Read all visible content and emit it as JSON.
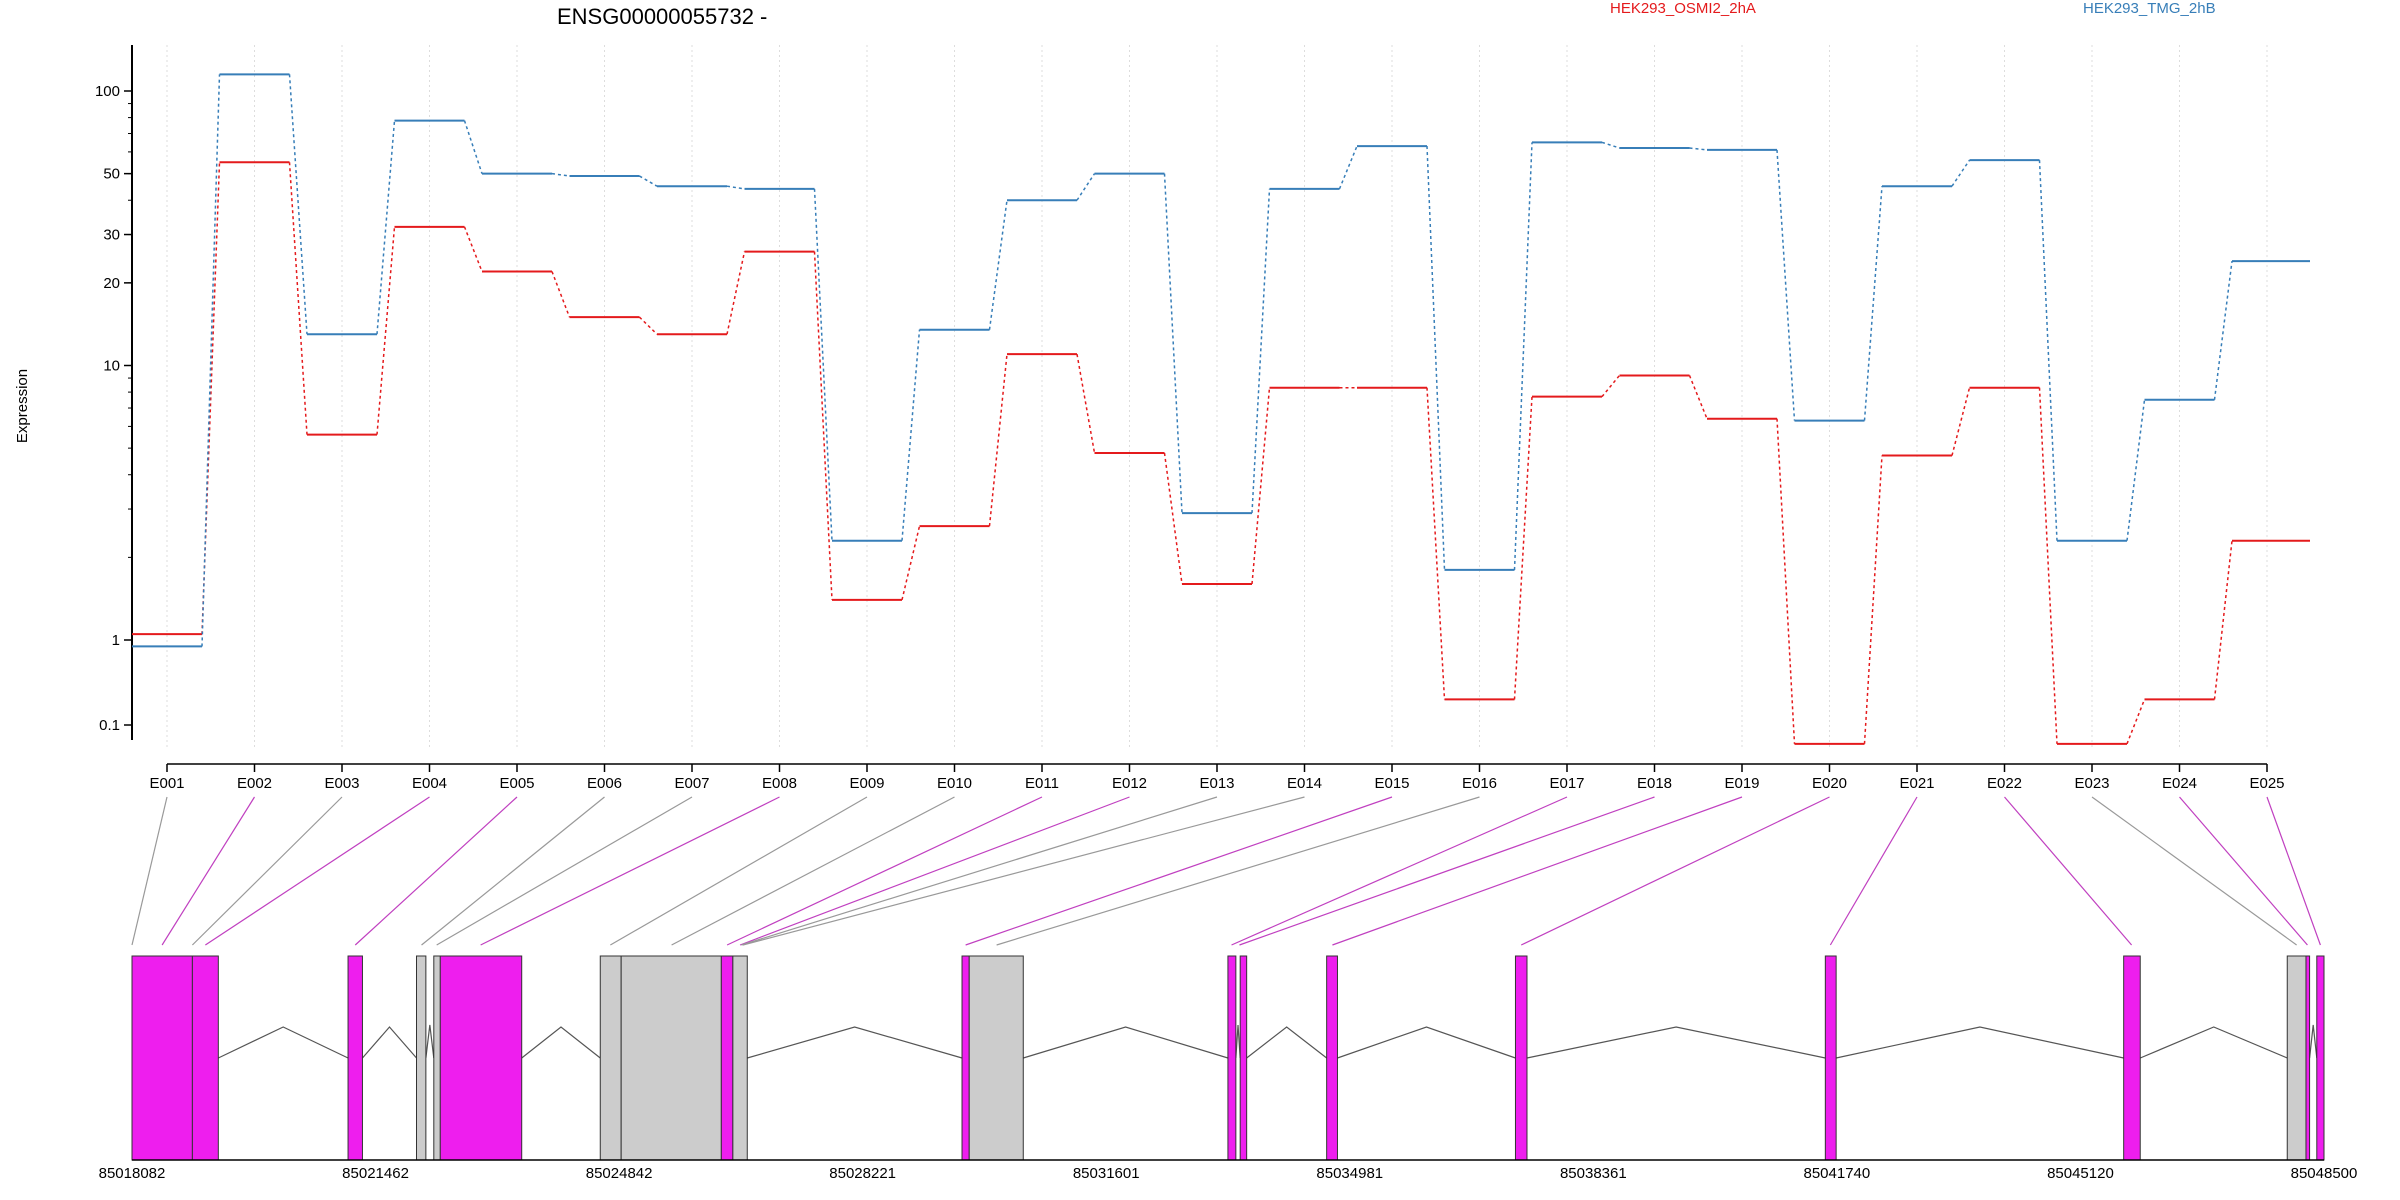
{
  "chart_data": {
    "type": "line",
    "title": "ENSG00000055732 -",
    "xlabel": "",
    "ylabel": "Expression",
    "y_scale": "log",
    "y_ticks": [
      0.1,
      1,
      10,
      20,
      30,
      50,
      100
    ],
    "y_tick_labels": [
      "0.1",
      "1",
      "10",
      "20",
      "30",
      "50",
      "100"
    ],
    "grid": "vertical dotted lines at exon positions",
    "legend_position": "top",
    "categories": [
      "E001",
      "E002",
      "E003",
      "E004",
      "E005",
      "E006",
      "E007",
      "E008",
      "E009",
      "E010",
      "E011",
      "E012",
      "E013",
      "E014",
      "E015",
      "E016",
      "E017",
      "E018",
      "E019",
      "E020",
      "E021",
      "E022",
      "E023",
      "E024",
      "E025"
    ],
    "series": [
      {
        "name": "HEK293_OSMI2_2hA",
        "color": "#e41a1c",
        "values": [
          1.05,
          55,
          5.6,
          32,
          22,
          15,
          13,
          26,
          1.4,
          2.6,
          11,
          4.8,
          1.6,
          8.3,
          8.3,
          0.2,
          7.7,
          9.2,
          6.4,
          0.06,
          4.7,
          8.3,
          0.06,
          0.2,
          2.3
        ]
      },
      {
        "name": "HEK293_TMG_2hB",
        "color": "#377eb8",
        "values": [
          0.84,
          115,
          13,
          78,
          50,
          49,
          45,
          44,
          2.3,
          13.5,
          40,
          50,
          2.9,
          44,
          63,
          1.8,
          65,
          62,
          61,
          6.3,
          45,
          56,
          2.3,
          7.5,
          24
        ]
      }
    ],
    "gene_model": {
      "coordinate_labels": [
        "85018082",
        "85021462",
        "85024842",
        "85028221",
        "85031601",
        "85034981",
        "85038361",
        "85041740",
        "85045120",
        "85048500"
      ],
      "coord_start": 85018082,
      "coord_end": 85048500,
      "highlight_color": "#ee1eee",
      "other_color": "#cccccc",
      "exon_blocks": [
        {
          "exon": "E001",
          "start": 85018082,
          "end": 85018920,
          "kind": "highlight"
        },
        {
          "exon": "E002",
          "start": 85018920,
          "end": 85019280,
          "kind": "highlight"
        },
        {
          "exon": "E003",
          "start": 85021080,
          "end": 85021280,
          "kind": "highlight"
        },
        {
          "exon": "E004",
          "start": 85022030,
          "end": 85022160,
          "kind": "other"
        },
        {
          "exon": "E005",
          "start": 85022270,
          "end": 85022360,
          "kind": "other"
        },
        {
          "exon": "E006",
          "start": 85022360,
          "end": 85023490,
          "kind": "highlight"
        },
        {
          "exon": "E007",
          "start": 85024580,
          "end": 85024870,
          "kind": "other"
        },
        {
          "exon": "E008",
          "start": 85024870,
          "end": 85026260,
          "kind": "other"
        },
        {
          "exon": "E009",
          "start": 85026260,
          "end": 85026420,
          "kind": "highlight"
        },
        {
          "exon": "E010",
          "start": 85026420,
          "end": 85026620,
          "kind": "other"
        },
        {
          "exon": "E011",
          "start": 85029600,
          "end": 85029700,
          "kind": "highlight"
        },
        {
          "exon": "E012",
          "start": 85029700,
          "end": 85030450,
          "kind": "other"
        },
        {
          "exon": "E013",
          "start": 85033290,
          "end": 85033400,
          "kind": "highlight"
        },
        {
          "exon": "E014",
          "start": 85033460,
          "end": 85033550,
          "kind": "highlight"
        },
        {
          "exon": "E015",
          "start": 85034660,
          "end": 85034810,
          "kind": "highlight"
        },
        {
          "exon": "E016",
          "start": 85037280,
          "end": 85037440,
          "kind": "highlight"
        },
        {
          "exon": "E017",
          "start": 85041580,
          "end": 85041730,
          "kind": "highlight"
        },
        {
          "exon": "E018",
          "start": 85045720,
          "end": 85045950,
          "kind": "highlight"
        },
        {
          "exon": "E019",
          "start": 85047990,
          "end": 85048250,
          "kind": "other"
        },
        {
          "exon": "E020",
          "start": 85048250,
          "end": 85048300,
          "kind": "highlight"
        },
        {
          "exon": "E021",
          "start": 85048400,
          "end": 85048500,
          "kind": "highlight"
        }
      ],
      "introns": [
        [
          85019280,
          85021080
        ],
        [
          85021280,
          85022030
        ],
        [
          85022160,
          85022270
        ],
        [
          85023490,
          85024580
        ],
        [
          85026620,
          85029600
        ],
        [
          85030450,
          85033290
        ],
        [
          85033400,
          85033460
        ],
        [
          85033550,
          85034660
        ],
        [
          85034810,
          85037280
        ],
        [
          85037440,
          85041580
        ],
        [
          85041730,
          85045720
        ],
        [
          85045950,
          85047990
        ],
        [
          85048300,
          85048400
        ]
      ],
      "exon_links": [
        {
          "exon": "E001",
          "coord": 85018082,
          "kind": "other"
        },
        {
          "exon": "E002",
          "coord": 85018500,
          "kind": "highlight"
        },
        {
          "exon": "E003",
          "coord": 85018920,
          "kind": "other"
        },
        {
          "exon": "E004",
          "coord": 85019100,
          "kind": "highlight"
        },
        {
          "exon": "E005",
          "coord": 85021180,
          "kind": "highlight"
        },
        {
          "exon": "E006",
          "coord": 85022100,
          "kind": "other"
        },
        {
          "exon": "E007",
          "coord": 85022310,
          "kind": "other"
        },
        {
          "exon": "E008",
          "coord": 85022920,
          "kind": "highlight"
        },
        {
          "exon": "E009",
          "coord": 85024720,
          "kind": "other"
        },
        {
          "exon": "E010",
          "coord": 85025570,
          "kind": "other"
        },
        {
          "exon": "E011",
          "coord": 85026340,
          "kind": "highlight"
        },
        {
          "exon": "E012",
          "coord": 85026520,
          "kind": "highlight"
        },
        {
          "exon": "E013",
          "coord": 85026540,
          "kind": "other"
        },
        {
          "exon": "E014",
          "coord": 85026560,
          "kind": "other"
        },
        {
          "exon": "E015",
          "coord": 85029650,
          "kind": "highlight"
        },
        {
          "exon": "E016",
          "coord": 85030080,
          "kind": "other"
        },
        {
          "exon": "E017",
          "coord": 85033340,
          "kind": "highlight"
        },
        {
          "exon": "E018",
          "coord": 85033450,
          "kind": "highlight"
        },
        {
          "exon": "E019",
          "coord": 85034740,
          "kind": "highlight"
        },
        {
          "exon": "E020",
          "coord": 85037360,
          "kind": "highlight"
        },
        {
          "exon": "E021",
          "coord": 85041650,
          "kind": "highlight"
        },
        {
          "exon": "E022",
          "coord": 85045830,
          "kind": "highlight"
        },
        {
          "exon": "E023",
          "coord": 85048120,
          "kind": "other"
        },
        {
          "exon": "E024",
          "coord": 85048270,
          "kind": "highlight"
        },
        {
          "exon": "E025",
          "coord": 85048450,
          "kind": "highlight"
        }
      ]
    }
  }
}
